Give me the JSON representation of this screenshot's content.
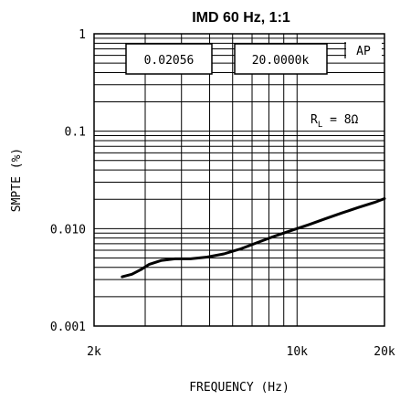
{
  "chart_data": {
    "type": "line",
    "title": "IMD 60 Hz, 1:1",
    "xlabel": "FREQUENCY (Hz)",
    "ylabel": "SMPTE (%)",
    "x_scale": "log",
    "y_scale": "log",
    "xlim": [
      2000,
      20000
    ],
    "ylim": [
      0.001,
      1
    ],
    "x_ticks": [
      {
        "value": 2000,
        "label": "2k"
      },
      {
        "value": 10000,
        "label": "10k"
      },
      {
        "value": 20000,
        "label": "20k"
      }
    ],
    "y_ticks": [
      {
        "value": 1,
        "label": "1"
      },
      {
        "value": 0.1,
        "label": "0.1"
      },
      {
        "value": 0.01,
        "label": "0.010"
      },
      {
        "value": 0.001,
        "label": "0.001"
      }
    ],
    "grid": true,
    "annotations": {
      "readout_left": "0.02056",
      "readout_right": "20.0000k",
      "brand": "AP",
      "load_prefix": "R",
      "load_sub": "L",
      "load_value": " = 8Ω"
    },
    "series": [
      {
        "x": [
          2500,
          2700,
          2900,
          3100,
          3400,
          3800,
          4300,
          4900,
          5600,
          6400,
          7300,
          8400,
          9600,
          11000,
          12500,
          14300,
          16300,
          18500,
          20000
        ],
        "y": [
          0.0032,
          0.0034,
          0.0038,
          0.0043,
          0.0047,
          0.0049,
          0.0049,
          0.0051,
          0.0055,
          0.0062,
          0.0072,
          0.0084,
          0.0096,
          0.011,
          0.0126,
          0.0145,
          0.0165,
          0.0186,
          0.0203
        ]
      }
    ]
  }
}
